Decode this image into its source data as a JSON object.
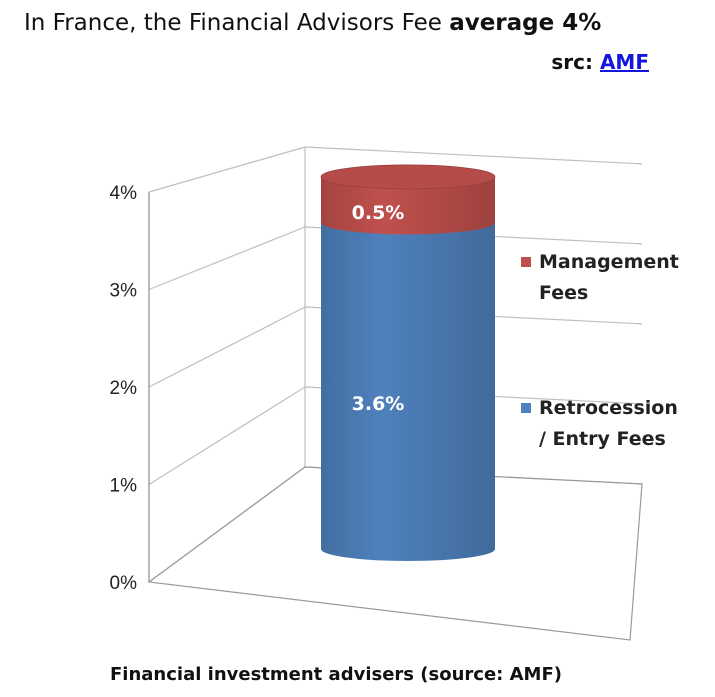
{
  "header": {
    "headline_prefix": "In France, the Financial Advisors Fee ",
    "headline_bold": "average 4%",
    "src_label": "src: ",
    "src_link": "AMF"
  },
  "chart_data": {
    "type": "bar",
    "title": "",
    "xlabel": "Financial investment advisers (source: AMF)",
    "ylabel": "",
    "ylim": [
      0,
      4
    ],
    "yticks": [
      "0%",
      "1%",
      "2%",
      "3%",
      "4%"
    ],
    "stacked": true,
    "categories": [
      ""
    ],
    "series": [
      {
        "name": "Retrocession / Entry Fees",
        "legend_lines": [
          "Retrocession",
          "/ Entry Fees"
        ],
        "values": [
          3.6
        ],
        "data_labels": [
          "3.6%"
        ],
        "color": "#4f81bd"
      },
      {
        "name": "Management Fees",
        "legend_lines": [
          "Management",
          "Fees"
        ],
        "values": [
          0.5
        ],
        "data_labels": [
          "0.5%"
        ],
        "color": "#c0504d"
      }
    ],
    "legend_position": "right",
    "grid": true
  }
}
